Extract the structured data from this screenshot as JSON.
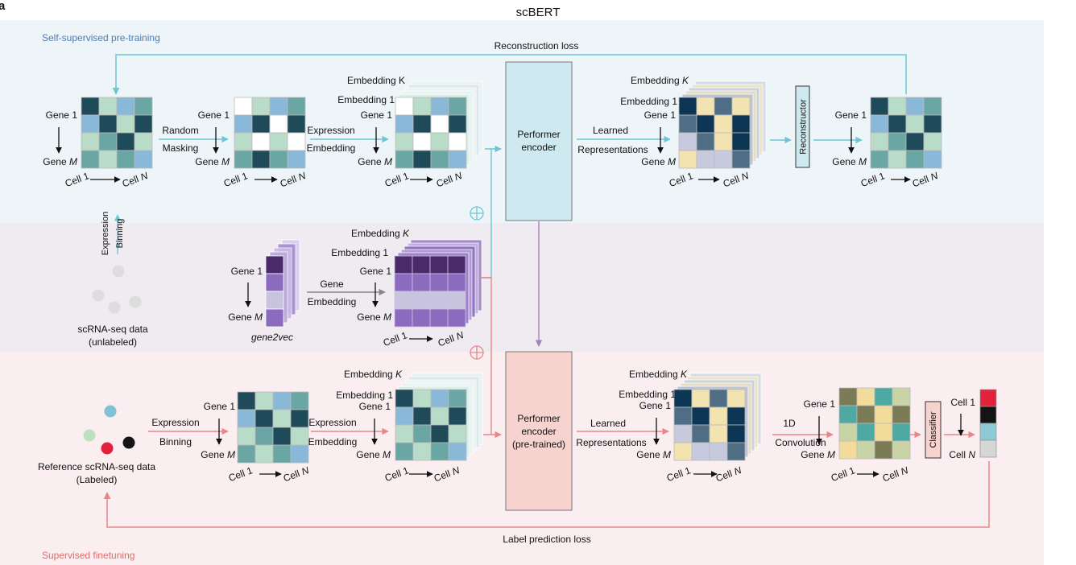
{
  "panel_letter": "a",
  "title": "scBERT",
  "sections": {
    "pretrain": "Self-supervised pre-training",
    "finetune": "Supervised finetuning"
  },
  "losses": {
    "reconstruction": "Reconstruction loss",
    "label_prediction": "Label prediction loss"
  },
  "axis": {
    "gene_first": "Gene 1",
    "gene_last_prefix": "Gene ",
    "gene_last_var": "M",
    "cell_first": "Cell 1",
    "cell_last_prefix": "Cell ",
    "cell_last_var": "N"
  },
  "embedding": {
    "k_prefix": "Embedding ",
    "k_var": "K",
    "one": "Embedding 1"
  },
  "steps": {
    "random": "Random",
    "masking": "Masking",
    "expression": "Expression",
    "embedding": "Embedding",
    "gene": "Gene",
    "learned": "Learned",
    "representations": "Representations",
    "binning": "Binning",
    "conv_1d": "1D",
    "convolution": "Convolution"
  },
  "blocks": {
    "performer_1": "Performer",
    "encoder": "encoder",
    "pretrained": "(pre-trained)",
    "reconstructor": "Reconstructor",
    "classifier": "Classifier"
  },
  "data_labels": {
    "unlabeled_1": "scRNA-seq data",
    "unlabeled_2": "(unlabeled)",
    "gene2vec": "gene2vec",
    "reference_1": "Reference scRNA-seq data",
    "reference_2": "(Labeled)"
  },
  "colors": {
    "pretrain_bg": "#eef5f9",
    "middle_bg": "#efebf1",
    "finetune_bg": "#fbeef0",
    "cyan": "#6cc6d6",
    "pink": "#e8868a",
    "purple": "#a77fc0",
    "pretrain_title": "#4a7cb5",
    "finetune_title": "#e26a6a",
    "encoder_top": "#cfe9f0",
    "encoder_bottom": "#f7d3cf",
    "classifier_box": "#f7d3cf",
    "reconstructor_box": "#cfe9f0",
    "palette_blue": {
      "dark": "#1e4a59",
      "mid": "#6aa6a4",
      "light": "#b9dcc8",
      "sky": "#8ab8d8"
    },
    "palette_rep": {
      "navy": "#0d3554",
      "slate": "#4f6d85",
      "beige": "#f3e3b0",
      "lav": "#c7cadf"
    },
    "palette_purple": {
      "deep": "#4a2a6b",
      "mid": "#8a6bbd",
      "light": "#c8c4e0"
    },
    "palette_conv": {
      "olive": "#7b7b55",
      "teal": "#4fa9a3",
      "sand": "#f1dc9c",
      "pale": "#c8d3a6"
    },
    "label_column": [
      "#e2223a",
      "#141414",
      "#8ecad6",
      "#d6d6d6"
    ],
    "ref_dots": [
      "#7ec2d3",
      "#bde0bf",
      "#e2223a",
      "#141414"
    ]
  }
}
